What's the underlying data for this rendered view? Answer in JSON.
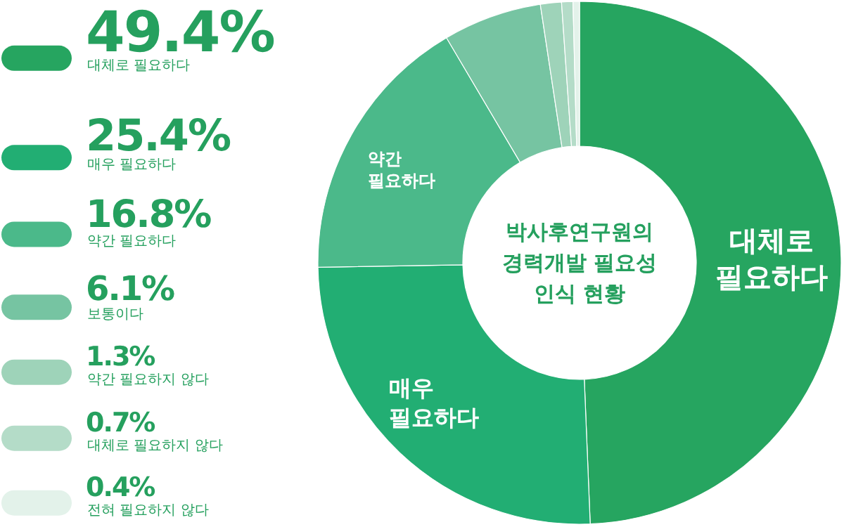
{
  "chart_data": {
    "type": "donut",
    "title": "박사후연구원의 경력개발 필요성 인식 현황",
    "categories": [
      "대체로 필요하다",
      "매우 필요하다",
      "약간 필요하다",
      "보통이다",
      "약간 필요하지 않다",
      "대체로 필요하지 않다",
      "전혀 필요하지 않다"
    ],
    "values": [
      49.4,
      25.4,
      16.8,
      6.1,
      1.3,
      0.7,
      0.4
    ],
    "value_labels": [
      "49.4%",
      "25.4%",
      "16.8%",
      "6.1%",
      "1.3%",
      "0.7%",
      "0.4%"
    ],
    "colors": [
      "#26a560",
      "#22ae73",
      "#4bb98a",
      "#76c4a2",
      "#9ed3b9",
      "#b4dcc8",
      "#e3f2ea"
    ],
    "annotations": [
      "대체로 필요하다",
      "매우 필요하다",
      "약간 필요하다"
    ],
    "legend": "left"
  }
}
